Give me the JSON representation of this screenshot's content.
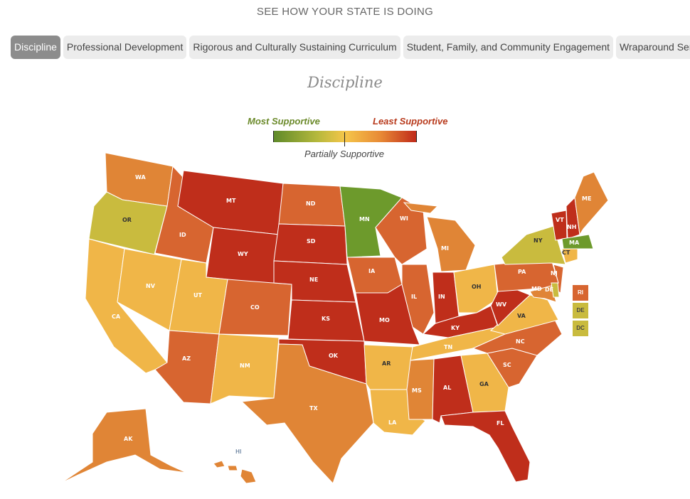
{
  "heading": "SEE HOW YOUR STATE IS DOING",
  "tabs": [
    {
      "label": "Discipline",
      "active": true
    },
    {
      "label": "Professional Development",
      "active": false
    },
    {
      "label": "Rigorous and Culturally Sustaining Curriculum",
      "active": false
    },
    {
      "label": "Student, Family, and Community Engagement",
      "active": false
    },
    {
      "label": "Wraparound Services",
      "active": false
    }
  ],
  "map_title": "Discipline",
  "legend": {
    "most": "Most Supportive",
    "least": "Least Supportive",
    "partial": "Partially Supportive"
  },
  "colors": {
    "most_supportive": "#6d9a2c",
    "mostly_supportive": "#c9bb3e",
    "partially_supportive": "#f0b648",
    "mostly_unsupportive": "#e08536",
    "leaning_unsupportive": "#d76530",
    "least_supportive": "#bf2e1b"
  },
  "states": [
    {
      "code": "WA",
      "rating": "mostly_unsupportive"
    },
    {
      "code": "OR",
      "rating": "mostly_supportive"
    },
    {
      "code": "CA",
      "rating": "partially_supportive"
    },
    {
      "code": "NV",
      "rating": "partially_supportive"
    },
    {
      "code": "ID",
      "rating": "leaning_unsupportive"
    },
    {
      "code": "MT",
      "rating": "least_supportive"
    },
    {
      "code": "WY",
      "rating": "least_supportive"
    },
    {
      "code": "UT",
      "rating": "partially_supportive"
    },
    {
      "code": "AZ",
      "rating": "leaning_unsupportive"
    },
    {
      "code": "CO",
      "rating": "leaning_unsupportive"
    },
    {
      "code": "NM",
      "rating": "partially_supportive"
    },
    {
      "code": "ND",
      "rating": "leaning_unsupportive"
    },
    {
      "code": "SD",
      "rating": "least_supportive"
    },
    {
      "code": "NE",
      "rating": "least_supportive"
    },
    {
      "code": "KS",
      "rating": "least_supportive"
    },
    {
      "code": "OK",
      "rating": "least_supportive"
    },
    {
      "code": "TX",
      "rating": "mostly_unsupportive"
    },
    {
      "code": "MN",
      "rating": "most_supportive"
    },
    {
      "code": "IA",
      "rating": "leaning_unsupportive"
    },
    {
      "code": "MO",
      "rating": "least_supportive"
    },
    {
      "code": "AR",
      "rating": "partially_supportive"
    },
    {
      "code": "LA",
      "rating": "partially_supportive"
    },
    {
      "code": "WI",
      "rating": "leaning_unsupportive"
    },
    {
      "code": "IL",
      "rating": "leaning_unsupportive"
    },
    {
      "code": "MI",
      "rating": "mostly_unsupportive"
    },
    {
      "code": "IN",
      "rating": "least_supportive"
    },
    {
      "code": "OH",
      "rating": "partially_supportive"
    },
    {
      "code": "KY",
      "rating": "least_supportive"
    },
    {
      "code": "TN",
      "rating": "partially_supportive"
    },
    {
      "code": "MS",
      "rating": "mostly_unsupportive"
    },
    {
      "code": "AL",
      "rating": "least_supportive"
    },
    {
      "code": "GA",
      "rating": "partially_supportive"
    },
    {
      "code": "FL",
      "rating": "least_supportive"
    },
    {
      "code": "SC",
      "rating": "leaning_unsupportive"
    },
    {
      "code": "NC",
      "rating": "leaning_unsupportive"
    },
    {
      "code": "VA",
      "rating": "partially_supportive"
    },
    {
      "code": "WV",
      "rating": "least_supportive"
    },
    {
      "code": "PA",
      "rating": "leaning_unsupportive"
    },
    {
      "code": "NY",
      "rating": "mostly_supportive"
    },
    {
      "code": "VT",
      "rating": "least_supportive"
    },
    {
      "code": "NH",
      "rating": "least_supportive"
    },
    {
      "code": "ME",
      "rating": "mostly_unsupportive"
    },
    {
      "code": "MA",
      "rating": "most_supportive"
    },
    {
      "code": "CT",
      "rating": "partially_supportive"
    },
    {
      "code": "NJ",
      "rating": "leaning_unsupportive"
    },
    {
      "code": "MD",
      "rating": "mostly_unsupportive"
    },
    {
      "code": "DE",
      "rating": "mostly_supportive"
    },
    {
      "code": "RI",
      "rating": "leaning_unsupportive"
    },
    {
      "code": "DC",
      "rating": "mostly_supportive"
    },
    {
      "code": "AK",
      "rating": "mostly_unsupportive"
    },
    {
      "code": "HI",
      "rating": "mostly_unsupportive"
    }
  ],
  "side_boxes": [
    {
      "code": "RI",
      "rating": "leaning_unsupportive"
    },
    {
      "code": "DE",
      "rating": "mostly_supportive"
    },
    {
      "code": "DC",
      "rating": "mostly_supportive"
    }
  ]
}
